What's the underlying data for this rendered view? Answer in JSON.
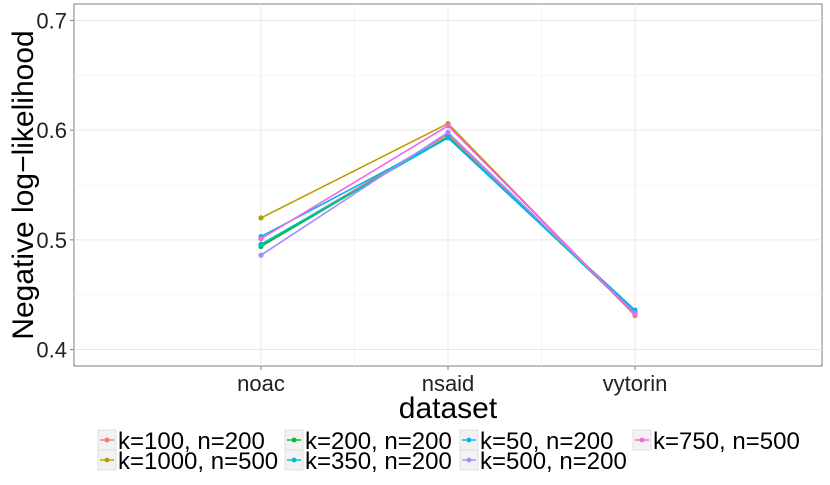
{
  "chart_data": {
    "type": "line",
    "xlabel": "dataset",
    "ylabel": "Negative log−likelihood",
    "categories": [
      "noac",
      "nsaid",
      "vytorin"
    ],
    "ylim": [
      0.385,
      0.715
    ],
    "yticks": [
      "0.4",
      "0.5",
      "0.6",
      "0.7"
    ],
    "grid": true,
    "legend_position": "bottom",
    "series": [
      {
        "name": "k=100, n=200",
        "color": "#F8766D",
        "values": [
          0.495,
          0.596,
          0.434
        ]
      },
      {
        "name": "k=1000, n=500",
        "color": "#B79F00",
        "values": [
          0.52,
          0.606,
          0.431
        ]
      },
      {
        "name": "k=200, n=200",
        "color": "#00BA38",
        "values": [
          0.494,
          0.594,
          0.433
        ]
      },
      {
        "name": "k=350, n=200",
        "color": "#00BFC4",
        "values": [
          0.496,
          0.593,
          0.434
        ]
      },
      {
        "name": "k=50, n=200",
        "color": "#00B4F0",
        "values": [
          0.503,
          0.593,
          0.436
        ]
      },
      {
        "name": "k=500, n=200",
        "color": "#A58AFF",
        "values": [
          0.486,
          0.598,
          0.433
        ]
      },
      {
        "name": "k=750, n=500",
        "color": "#F564E3",
        "values": [
          0.501,
          0.604,
          0.432
        ]
      }
    ]
  }
}
